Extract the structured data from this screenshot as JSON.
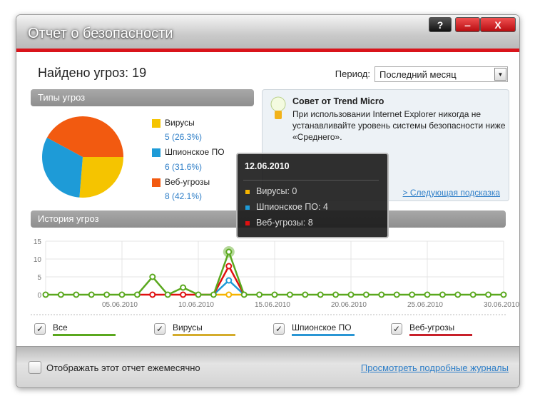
{
  "window": {
    "title": "Отчет о безопасности",
    "help": "?",
    "minimize": "‒",
    "close": "X"
  },
  "summary": {
    "found": "Найдено угроз: 19"
  },
  "period": {
    "label": "Период:",
    "value": "Последний месяц"
  },
  "types": {
    "header": "Типы угроз",
    "items": [
      {
        "name": "Вирусы",
        "value": "5 (26.3%)",
        "color": "#f5c400",
        "pct": 26.3
      },
      {
        "name": "Шпионское ПО",
        "value": "6 (31.6%)",
        "color": "#1e9bd7",
        "pct": 31.6
      },
      {
        "name": "Веб-угрозы",
        "value": "8 (42.1%)",
        "color": "#f25a10",
        "pct": 42.1
      }
    ]
  },
  "tip": {
    "title": "Совет от Trend Micro",
    "body": "При использовании Internet Explorer никогда не устанавливайте уровень системы безопасности ниже «Среднего».",
    "next": "> Следующая подсказка",
    "icon": "lightbulb-icon"
  },
  "history": {
    "header": "История угроз"
  },
  "tooltip": {
    "date": "12.06.2010",
    "rows": [
      {
        "text": "Вирусы: 0",
        "color": "#f5b400"
      },
      {
        "text": "Шпионское ПО: 4",
        "color": "#1e9bd7"
      },
      {
        "text": "Веб-угрозы: 8",
        "color": "#e01010"
      }
    ]
  },
  "chart_data": {
    "type": "line",
    "ylim": [
      0,
      15
    ],
    "yticks": [
      "0",
      "5",
      "10",
      "15"
    ],
    "xtick_labels": [
      "05.06.2010",
      "10.06.2010",
      "15.06.2010",
      "20.06.2010",
      "25.06.2010",
      "30.06.2010"
    ],
    "xtick_days": [
      5,
      10,
      15,
      20,
      25,
      30
    ],
    "x_days": [
      0,
      30
    ],
    "grid": true,
    "highlight_day": 12,
    "series": [
      {
        "name": "Все",
        "color": "#5aa81e",
        "points": {
          "7": 5,
          "9": 2,
          "12": 12
        }
      },
      {
        "name": "Вирусы",
        "color": "#f5b400",
        "points": {
          "12": 0
        }
      },
      {
        "name": "Шпионское ПО",
        "color": "#1e9bd7",
        "points": {
          "12": 4
        }
      },
      {
        "name": "Веб-угрозы",
        "color": "#e01010",
        "points": {
          "7": 0,
          "9": 0,
          "12": 8
        }
      }
    ],
    "legend": [
      {
        "label": "Все",
        "color": "#5aa81e",
        "checked": true
      },
      {
        "label": "Вирусы",
        "color": "#d4ac2c",
        "checked": true
      },
      {
        "label": "Шпионское ПО",
        "color": "#2a96d4",
        "checked": true
      },
      {
        "label": "Веб-угрозы",
        "color": "#c8202a",
        "checked": true
      }
    ]
  },
  "footer": {
    "monthly": "Отображать этот отчет ежемесячно",
    "monthly_checked": false,
    "logs": "Просмотреть подробные журналы"
  }
}
